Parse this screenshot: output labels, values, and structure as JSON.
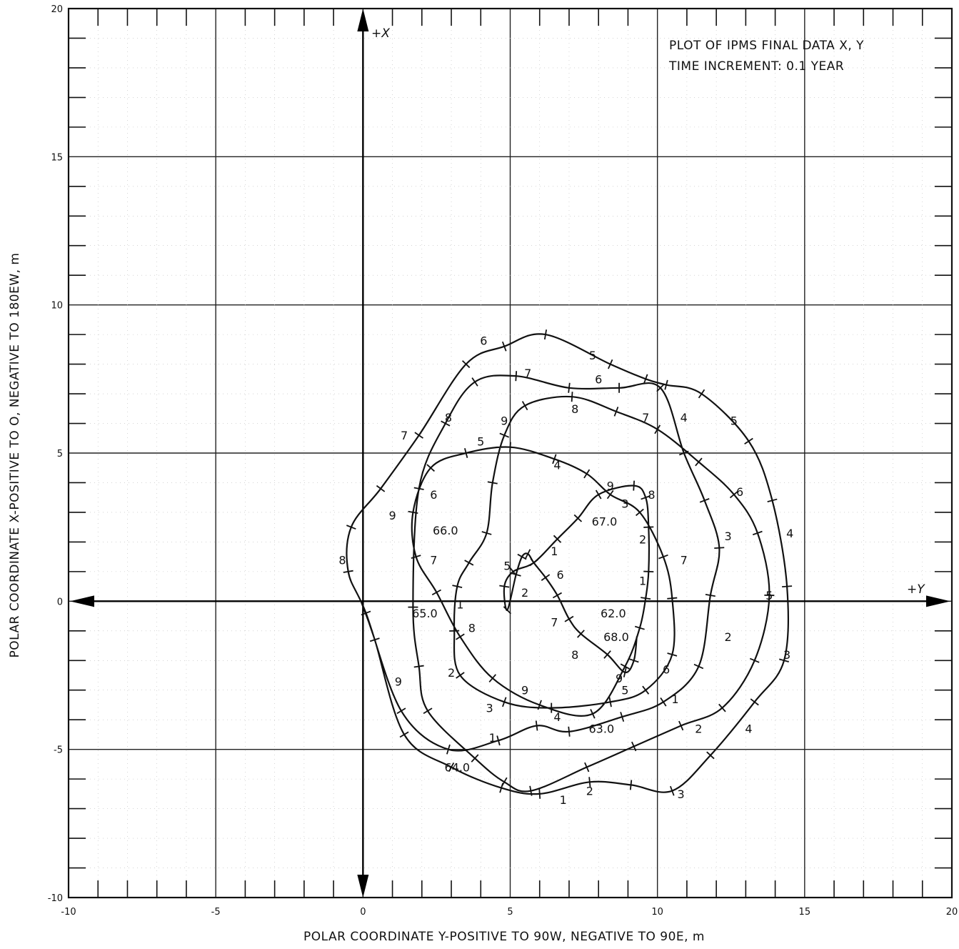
{
  "chart_data": {
    "type": "line",
    "title": "PLOT OF IPMS FINAL DATA X, Y",
    "subtitle": "TIME INCREMENT: 0.1 YEAR",
    "xlabel": "POLAR COORDINATE Y-POSITIVE TO 90W, NEGATIVE TO 90E, m",
    "ylabel": "POLAR COORDINATE X-POSITIVE TO O, NEGATIVE TO 180EW, m",
    "xlim": [
      -10,
      20
    ],
    "ylim": [
      -10,
      20
    ],
    "xticks": [
      -10,
      -5,
      0,
      5,
      10,
      15,
      20
    ],
    "yticks": [
      -10,
      -5,
      0,
      5,
      10,
      15,
      20
    ],
    "xtick_labels": [
      "-10",
      "-5",
      "0",
      "5",
      "10",
      "15",
      "20"
    ],
    "ytick_labels": [
      "-10",
      "-5",
      "0",
      "5",
      "10",
      "15",
      "20"
    ],
    "grid": true,
    "axis_tags": {
      "x_positive": "+Y",
      "y_positive": "+X"
    },
    "path": [
      [
        9.3,
        -1.2
      ],
      [
        9.2,
        -2.0
      ],
      [
        8.9,
        -2.4
      ],
      [
        8.3,
        -1.8
      ],
      [
        7.4,
        -1.1
      ],
      [
        7.0,
        -0.6
      ],
      [
        6.6,
        0.2
      ],
      [
        6.2,
        0.8
      ],
      [
        5.8,
        1.3
      ],
      [
        5.6,
        1.6
      ],
      [
        5.4,
        1.5
      ],
      [
        5.2,
        0.9
      ],
      [
        4.9,
        -0.3
      ],
      [
        4.8,
        0.5
      ],
      [
        5.1,
        1.0
      ],
      [
        5.8,
        1.3
      ],
      [
        6.6,
        2.1
      ],
      [
        7.3,
        2.8
      ],
      [
        8.0,
        3.6
      ],
      [
        9.2,
        3.9
      ],
      [
        9.6,
        3.5
      ],
      [
        9.7,
        2.5
      ],
      [
        9.7,
        1.0
      ],
      [
        9.6,
        0.1
      ],
      [
        9.4,
        -0.9
      ],
      [
        8.9,
        -2.2
      ],
      [
        7.8,
        -3.8
      ],
      [
        6.0,
        -3.5
      ],
      [
        4.4,
        -2.6
      ],
      [
        3.3,
        -1.2
      ],
      [
        2.5,
        0.3
      ],
      [
        1.8,
        1.5
      ],
      [
        1.7,
        3.0
      ],
      [
        2.3,
        4.5
      ],
      [
        3.5,
        5.0
      ],
      [
        5.0,
        5.2
      ],
      [
        6.5,
        4.8
      ],
      [
        7.6,
        4.3
      ],
      [
        8.4,
        3.6
      ],
      [
        9.4,
        3.0
      ],
      [
        10.2,
        1.5
      ],
      [
        10.5,
        0.1
      ],
      [
        10.5,
        -1.8
      ],
      [
        9.6,
        -3.0
      ],
      [
        8.4,
        -3.4
      ],
      [
        6.4,
        -3.6
      ],
      [
        4.8,
        -3.4
      ],
      [
        3.3,
        -2.5
      ],
      [
        3.1,
        -1.0
      ],
      [
        3.2,
        0.5
      ],
      [
        3.6,
        1.3
      ],
      [
        4.2,
        2.3
      ],
      [
        4.4,
        4.0
      ],
      [
        4.8,
        5.6
      ],
      [
        5.5,
        6.6
      ],
      [
        7.1,
        6.9
      ],
      [
        8.6,
        6.4
      ],
      [
        10.0,
        5.8
      ],
      [
        11.4,
        4.7
      ],
      [
        12.6,
        3.6
      ],
      [
        13.4,
        2.3
      ],
      [
        13.8,
        0.2
      ],
      [
        13.3,
        -2.0
      ],
      [
        12.2,
        -3.6
      ],
      [
        10.8,
        -4.2
      ],
      [
        9.2,
        -4.9
      ],
      [
        7.6,
        -5.6
      ],
      [
        5.7,
        -6.4
      ],
      [
        4.8,
        -6.1
      ],
      [
        3.8,
        -5.3
      ],
      [
        2.2,
        -3.7
      ],
      [
        1.9,
        -2.2
      ],
      [
        1.7,
        -0.2
      ],
      [
        1.9,
        3.8
      ],
      [
        2.8,
        6.0
      ],
      [
        3.8,
        7.4
      ],
      [
        5.2,
        7.6
      ],
      [
        7.0,
        7.2
      ],
      [
        8.7,
        7.2
      ],
      [
        10.1,
        7.2
      ],
      [
        10.9,
        5.0
      ],
      [
        11.6,
        3.4
      ],
      [
        12.1,
        1.8
      ],
      [
        11.8,
        0.2
      ],
      [
        11.4,
        -2.2
      ],
      [
        10.2,
        -3.4
      ],
      [
        8.8,
        -3.9
      ],
      [
        7.0,
        -4.4
      ],
      [
        5.9,
        -4.2
      ],
      [
        4.6,
        -4.7
      ],
      [
        2.9,
        -5.0
      ],
      [
        1.3,
        -3.7
      ],
      [
        0.1,
        -0.4
      ],
      [
        -0.5,
        1.0
      ],
      [
        -0.4,
        2.5
      ],
      [
        0.6,
        3.8
      ],
      [
        1.9,
        5.6
      ],
      [
        3.5,
        8.0
      ],
      [
        4.8,
        8.6
      ],
      [
        6.2,
        9.0
      ],
      [
        8.4,
        8.0
      ],
      [
        9.6,
        7.5
      ],
      [
        10.3,
        7.3
      ],
      [
        11.5,
        7.0
      ],
      [
        13.1,
        5.4
      ],
      [
        13.9,
        3.4
      ],
      [
        14.4,
        0.5
      ],
      [
        14.3,
        -2.0
      ],
      [
        13.3,
        -3.4
      ],
      [
        11.8,
        -5.2
      ],
      [
        10.5,
        -6.4
      ],
      [
        9.1,
        -6.2
      ],
      [
        7.7,
        -6.1
      ],
      [
        6.0,
        -6.5
      ],
      [
        4.7,
        -6.3
      ],
      [
        3.0,
        -5.6
      ],
      [
        1.4,
        -4.5
      ],
      [
        0.4,
        -1.3
      ],
      [
        -0.05,
        -0.05
      ]
    ],
    "year_labels": [
      {
        "text": "62.0",
        "x": 8.5,
        "y": -0.4
      },
      {
        "text": "63.0",
        "x": 8.1,
        "y": -4.3
      },
      {
        "text": "64.0",
        "x": 3.2,
        "y": -5.6
      },
      {
        "text": "65.0",
        "x": 2.1,
        "y": -0.4
      },
      {
        "text": "66.0",
        "x": 2.8,
        "y": 2.4
      },
      {
        "text": "67.0",
        "x": 8.2,
        "y": 2.7
      },
      {
        "text": "68.0",
        "x": 8.6,
        "y": -1.2
      }
    ],
    "month_labels": [
      {
        "text": "1",
        "x": 6.5,
        "y": 1.7
      },
      {
        "text": "2",
        "x": 5.5,
        "y": 0.3
      },
      {
        "text": "5",
        "x": 4.9,
        "y": 1.2
      },
      {
        "text": "6",
        "x": 6.7,
        "y": 0.9
      },
      {
        "text": "7",
        "x": 6.5,
        "y": -0.7
      },
      {
        "text": "8",
        "x": 7.2,
        "y": -1.8
      },
      {
        "text": "9",
        "x": 8.7,
        "y": -2.6
      },
      {
        "text": "5",
        "x": 8.9,
        "y": -3.0
      },
      {
        "text": "1",
        "x": 9.5,
        "y": 0.7
      },
      {
        "text": "2",
        "x": 9.5,
        "y": 2.1
      },
      {
        "text": "3",
        "x": 8.9,
        "y": 3.3
      },
      {
        "text": "8",
        "x": 9.8,
        "y": 3.6
      },
      {
        "text": "9",
        "x": 8.4,
        "y": 3.9
      },
      {
        "text": "4",
        "x": 6.6,
        "y": 4.6
      },
      {
        "text": "5",
        "x": 4.0,
        "y": 5.4
      },
      {
        "text": "6",
        "x": 2.4,
        "y": 3.6
      },
      {
        "text": "7",
        "x": 2.4,
        "y": 1.4
      },
      {
        "text": "1",
        "x": 3.3,
        "y": -0.1
      },
      {
        "text": "8",
        "x": 3.7,
        "y": -0.9
      },
      {
        "text": "2",
        "x": 3.0,
        "y": -2.4
      },
      {
        "text": "9",
        "x": 5.5,
        "y": -3.0
      },
      {
        "text": "3",
        "x": 4.3,
        "y": -3.6
      },
      {
        "text": "4",
        "x": 6.6,
        "y": -3.9
      },
      {
        "text": "6",
        "x": 10.3,
        "y": -2.3
      },
      {
        "text": "1",
        "x": 10.6,
        "y": -3.3
      },
      {
        "text": "7",
        "x": 10.9,
        "y": 1.4
      },
      {
        "text": "3",
        "x": 12.4,
        "y": 2.2
      },
      {
        "text": "6",
        "x": 12.8,
        "y": 3.7
      },
      {
        "text": "4",
        "x": 10.9,
        "y": 6.2
      },
      {
        "text": "7",
        "x": 9.6,
        "y": 6.2
      },
      {
        "text": "8",
        "x": 7.2,
        "y": 6.5
      },
      {
        "text": "9",
        "x": 4.8,
        "y": 6.1
      },
      {
        "text": "8",
        "x": 2.9,
        "y": 6.2
      },
      {
        "text": "7",
        "x": 1.4,
        "y": 5.6
      },
      {
        "text": "9",
        "x": 1.0,
        "y": 2.9
      },
      {
        "text": "8",
        "x": -0.7,
        "y": 1.4
      },
      {
        "text": "9",
        "x": 1.2,
        "y": -2.7
      },
      {
        "text": "1",
        "x": 4.4,
        "y": -4.6
      },
      {
        "text": "2",
        "x": 12.4,
        "y": -1.2
      },
      {
        "text": "5",
        "x": 13.8,
        "y": 0.2
      },
      {
        "text": "4",
        "x": 14.5,
        "y": 2.3
      },
      {
        "text": "5",
        "x": 12.6,
        "y": 6.1
      },
      {
        "text": "6",
        "x": 8.0,
        "y": 7.5
      },
      {
        "text": "7",
        "x": 5.6,
        "y": 7.7
      },
      {
        "text": "6",
        "x": 4.1,
        "y": 8.8
      },
      {
        "text": "5",
        "x": 7.8,
        "y": 8.3
      },
      {
        "text": "3",
        "x": 14.4,
        "y": -1.8
      },
      {
        "text": "4",
        "x": 13.1,
        "y": -4.3
      },
      {
        "text": "2",
        "x": 11.4,
        "y": -4.3
      },
      {
        "text": "3",
        "x": 10.8,
        "y": -6.5
      },
      {
        "text": "2",
        "x": 7.7,
        "y": -6.4
      },
      {
        "text": "1",
        "x": 6.8,
        "y": -6.7
      }
    ]
  }
}
